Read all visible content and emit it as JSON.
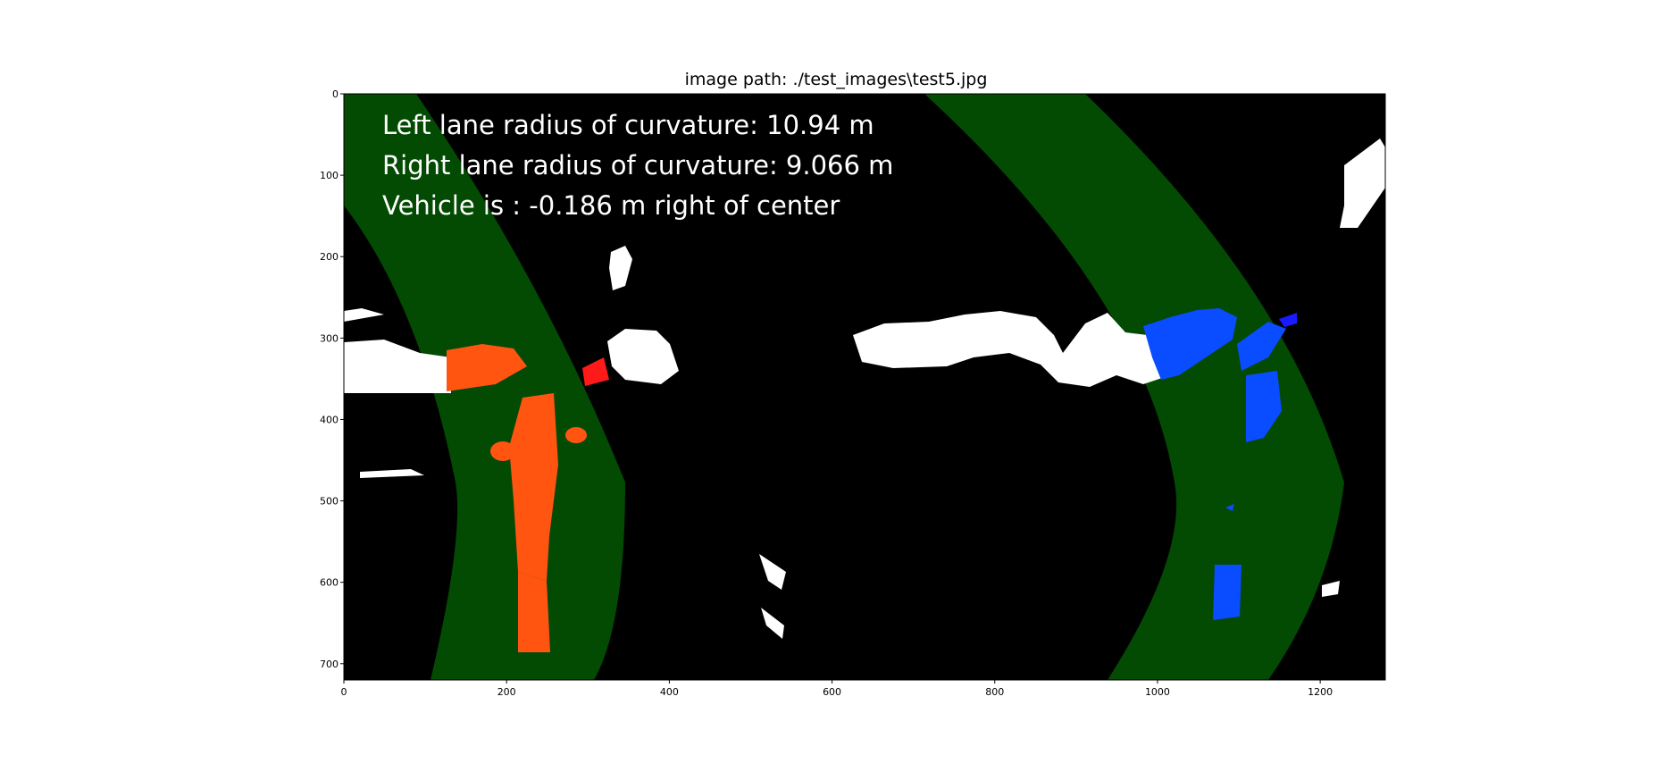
{
  "title": "image path: ./test_images\\test5.jpg",
  "overlay_lines": [
    "Left lane radius of curvature: 10.94 m",
    "Right lane radius of curvature: 9.066 m",
    "Vehicle is : -0.186 m right of center"
  ],
  "axes": {
    "xlim": [
      0,
      1280
    ],
    "ylim": [
      720,
      0
    ],
    "xticks": [
      0,
      200,
      400,
      600,
      800,
      1000,
      1200
    ],
    "yticks": [
      0,
      100,
      200,
      300,
      400,
      500,
      600,
      700
    ]
  },
  "colors": {
    "background": "#000000",
    "lane_band": "#034a03",
    "left_lane_pixels": "#ff5511",
    "left_lane_highlight": "#ff1a1a",
    "right_lane_pixels": "#0a4cff",
    "right_lane_highlight": "#1a1aff",
    "binary_pixels": "#ffffff"
  }
}
